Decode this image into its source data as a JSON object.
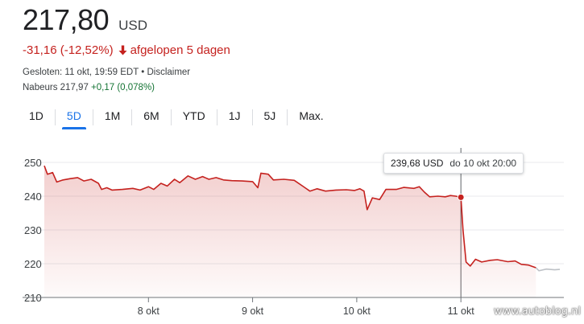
{
  "quote": {
    "price": "217,80",
    "currency": "USD",
    "change": "-31,16 (-12,52%)",
    "period": "afgelopen 5 dagen",
    "closed_info": "Gesloten: 11 okt, 19:59 EDT • Disclaimer",
    "after_label": "Nabeurs 217,97",
    "after_change": "+0,17 (0,078%)"
  },
  "tabs": [
    {
      "label": "1D",
      "active": false
    },
    {
      "label": "5D",
      "active": true
    },
    {
      "label": "1M",
      "active": false
    },
    {
      "label": "6M",
      "active": false
    },
    {
      "label": "YTD",
      "active": false
    },
    {
      "label": "1J",
      "active": false
    },
    {
      "label": "5J",
      "active": false
    },
    {
      "label": "Max.",
      "active": false
    }
  ],
  "tooltip": {
    "price": "239,68 USD",
    "date": "do 10 okt 20:00"
  },
  "watermark": "www.autoblog.nl",
  "colors": {
    "negative": "#c5221f",
    "positive": "#137333",
    "accent": "#1a73e8",
    "after_hours_line": "#bdc1c6"
  },
  "chart_data": {
    "type": "area",
    "ylim": [
      210,
      250
    ],
    "y_ticks": [
      "250",
      "240",
      "230",
      "220",
      "210"
    ],
    "y_tick_values": [
      250,
      240,
      230,
      220,
      210
    ],
    "x_ticks": [
      "8 okt",
      "9 okt",
      "10 okt",
      "11 okt"
    ],
    "x_tick_positions": [
      1,
      2,
      3,
      4
    ],
    "x_range": [
      0,
      4.95
    ],
    "selected_point": {
      "x": 4,
      "y": 239.68
    },
    "series": [
      {
        "values": [
          [
            0.0,
            249.0
          ],
          [
            0.03,
            246.5
          ],
          [
            0.08,
            247.0
          ],
          [
            0.12,
            244.2
          ],
          [
            0.18,
            244.8
          ],
          [
            0.25,
            245.2
          ],
          [
            0.32,
            245.5
          ],
          [
            0.38,
            244.5
          ],
          [
            0.45,
            245.0
          ],
          [
            0.52,
            243.8
          ],
          [
            0.55,
            242.0
          ],
          [
            0.6,
            242.5
          ],
          [
            0.65,
            241.8
          ],
          [
            0.75,
            242.0
          ],
          [
            0.85,
            242.3
          ],
          [
            0.92,
            241.8
          ],
          [
            1.0,
            242.8
          ],
          [
            1.05,
            242.0
          ],
          [
            1.12,
            243.8
          ],
          [
            1.18,
            243.0
          ],
          [
            1.25,
            245.0
          ],
          [
            1.3,
            244.0
          ],
          [
            1.38,
            246.0
          ],
          [
            1.45,
            245.0
          ],
          [
            1.52,
            245.8
          ],
          [
            1.58,
            245.0
          ],
          [
            1.65,
            245.5
          ],
          [
            1.72,
            244.8
          ],
          [
            1.8,
            244.6
          ],
          [
            1.9,
            244.5
          ],
          [
            2.0,
            244.3
          ],
          [
            2.05,
            242.5
          ],
          [
            2.08,
            246.8
          ],
          [
            2.15,
            246.5
          ],
          [
            2.2,
            244.8
          ],
          [
            2.3,
            245.0
          ],
          [
            2.4,
            244.7
          ],
          [
            2.48,
            243.0
          ],
          [
            2.55,
            241.5
          ],
          [
            2.62,
            242.2
          ],
          [
            2.7,
            241.5
          ],
          [
            2.8,
            241.8
          ],
          [
            2.9,
            241.9
          ],
          [
            2.98,
            241.7
          ],
          [
            3.03,
            242.2
          ],
          [
            3.07,
            241.5
          ],
          [
            3.1,
            236.0
          ],
          [
            3.15,
            239.5
          ],
          [
            3.22,
            239.0
          ],
          [
            3.28,
            242.0
          ],
          [
            3.38,
            242.0
          ],
          [
            3.45,
            242.6
          ],
          [
            3.55,
            242.3
          ],
          [
            3.6,
            242.8
          ],
          [
            3.65,
            241.2
          ],
          [
            3.7,
            239.8
          ],
          [
            3.78,
            240.0
          ],
          [
            3.85,
            239.8
          ],
          [
            3.9,
            240.2
          ],
          [
            3.95,
            240.0
          ],
          [
            4.0,
            239.68
          ],
          [
            4.02,
            230.0
          ],
          [
            4.05,
            220.5
          ],
          [
            4.09,
            219.3
          ],
          [
            4.14,
            221.3
          ],
          [
            4.2,
            220.5
          ],
          [
            4.28,
            221.0
          ],
          [
            4.35,
            221.2
          ],
          [
            4.45,
            220.6
          ],
          [
            4.52,
            220.8
          ],
          [
            4.58,
            219.8
          ],
          [
            4.65,
            219.6
          ],
          [
            4.72,
            218.8
          ]
        ]
      },
      {
        "values": [
          [
            4.72,
            218.8
          ],
          [
            4.75,
            217.9
          ],
          [
            4.82,
            218.4
          ],
          [
            4.9,
            218.2
          ],
          [
            4.95,
            218.3
          ]
        ]
      }
    ]
  }
}
